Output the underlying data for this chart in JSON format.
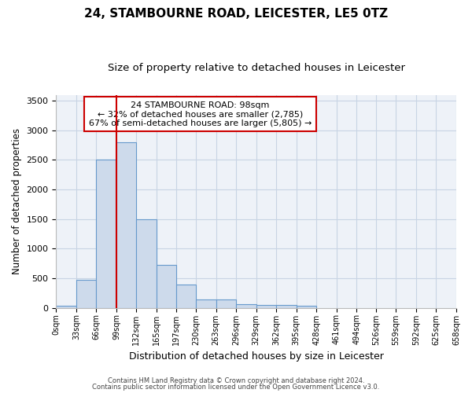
{
  "title1": "24, STAMBOURNE ROAD, LEICESTER, LE5 0TZ",
  "title2": "Size of property relative to detached houses in Leicester",
  "xlabel": "Distribution of detached houses by size in Leicester",
  "ylabel": "Number of detached properties",
  "bin_edges": [
    0,
    33,
    66,
    99,
    132,
    165,
    197,
    230,
    263,
    296,
    329,
    362,
    395,
    428,
    461,
    494,
    526,
    559,
    592,
    625,
    658
  ],
  "bar_heights": [
    30,
    470,
    2500,
    2800,
    1500,
    730,
    390,
    140,
    140,
    65,
    50,
    55,
    30,
    0,
    0,
    0,
    0,
    0,
    0,
    0
  ],
  "bar_color": "#cddaeb",
  "bar_edge_color": "#6699cc",
  "property_line_x": 99,
  "property_line_color": "#cc0000",
  "ylim": [
    0,
    3600
  ],
  "yticks": [
    0,
    500,
    1000,
    1500,
    2000,
    2500,
    3000,
    3500
  ],
  "annotation_text": "24 STAMBOURNE ROAD: 98sqm\n← 32% of detached houses are smaller (2,785)\n67% of semi-detached houses are larger (5,805) →",
  "annotation_box_color": "#ffffff",
  "annotation_box_edge_color": "#cc0000",
  "footer1": "Contains HM Land Registry data © Crown copyright and database right 2024.",
  "footer2": "Contains public sector information licensed under the Open Government Licence v3.0.",
  "bg_color": "#eef2f8",
  "grid_color": "#c8d4e4",
  "title1_fontsize": 11,
  "title2_fontsize": 9.5,
  "xlabel_fontsize": 9,
  "ylabel_fontsize": 8.5,
  "tick_fontsize": 7,
  "annotation_fontsize": 8,
  "footer_fontsize": 6,
  "tick_labels": [
    "0sqm",
    "33sqm",
    "66sqm",
    "99sqm",
    "132sqm",
    "165sqm",
    "197sqm",
    "230sqm",
    "263sqm",
    "296sqm",
    "329sqm",
    "362sqm",
    "395sqm",
    "428sqm",
    "461sqm",
    "494sqm",
    "526sqm",
    "559sqm",
    "592sqm",
    "625sqm",
    "658sqm"
  ]
}
